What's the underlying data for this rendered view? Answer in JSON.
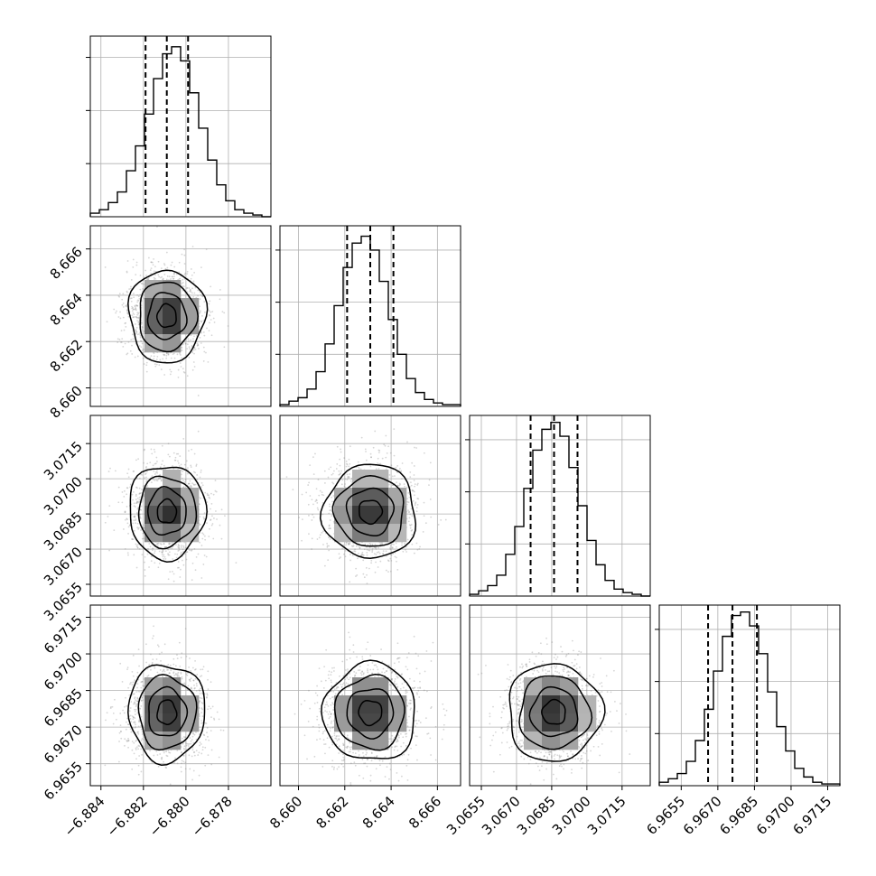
{
  "chart_data": {
    "type": "corner",
    "dims": 4,
    "grid": true,
    "colors": {
      "background": "#ffffff",
      "frame": "#000000",
      "grid": "#b0b0b0",
      "scatter": "#8a8a8a",
      "density_dark": "#000000",
      "contour": "#000000"
    },
    "params": [
      {
        "range": [
          -6.8845,
          -6.876
        ],
        "ticks": [
          "−6.884",
          "−6.882",
          "−6.880",
          "−6.878"
        ],
        "tick_values": [
          -6.884,
          -6.882,
          -6.88,
          -6.878
        ],
        "mean": -6.8809,
        "sigma": 0.0009,
        "quantiles": [
          -6.8819,
          -6.8809,
          -6.8799
        ],
        "hist_counts": [
          2,
          4,
          8,
          14,
          26,
          40,
          58,
          78,
          92,
          96,
          88,
          70,
          50,
          32,
          18,
          9,
          4,
          2,
          1,
          0
        ],
        "hist_ylim": [
          0,
          102
        ]
      },
      {
        "range": [
          8.6592,
          8.667
        ],
        "ticks": [
          "8.660",
          "8.662",
          "8.664",
          "8.666"
        ],
        "tick_values": [
          8.66,
          8.662,
          8.664,
          8.666
        ],
        "mean": 8.6631,
        "sigma": 0.001,
        "quantiles": [
          8.6621,
          8.6631,
          8.6641
        ],
        "hist_counts": [
          1,
          3,
          5,
          10,
          20,
          36,
          58,
          80,
          94,
          98,
          90,
          72,
          50,
          30,
          16,
          8,
          4,
          2,
          1,
          1
        ],
        "hist_ylim": [
          0,
          104
        ]
      },
      {
        "range": [
          3.065,
          3.0727
        ],
        "ticks": [
          "3.0655",
          "3.0670",
          "3.0685",
          "3.0700",
          "3.0715"
        ],
        "tick_values": [
          3.0655,
          3.067,
          3.0685,
          3.07,
          3.0715
        ],
        "mean": 3.0686,
        "sigma": 0.001,
        "quantiles": [
          3.0676,
          3.0686,
          3.0696
        ],
        "hist_counts": [
          1,
          3,
          6,
          12,
          24,
          40,
          62,
          84,
          96,
          100,
          92,
          74,
          52,
          32,
          18,
          9,
          4,
          2,
          1,
          0
        ],
        "hist_ylim": [
          0,
          104
        ]
      },
      {
        "range": [
          6.9646,
          6.972
        ],
        "ticks": [
          "6.9655",
          "6.9670",
          "6.9685",
          "6.9700",
          "6.9715"
        ],
        "tick_values": [
          6.9655,
          6.967,
          6.9685,
          6.97,
          6.9715
        ],
        "mean": 6.9676,
        "sigma": 0.001,
        "quantiles": [
          6.9666,
          6.9676,
          6.9686
        ],
        "hist_counts": [
          2,
          4,
          7,
          14,
          26,
          44,
          66,
          86,
          98,
          100,
          92,
          76,
          54,
          34,
          20,
          10,
          5,
          2,
          1,
          1
        ],
        "hist_ylim": [
          0,
          104
        ]
      }
    ]
  }
}
